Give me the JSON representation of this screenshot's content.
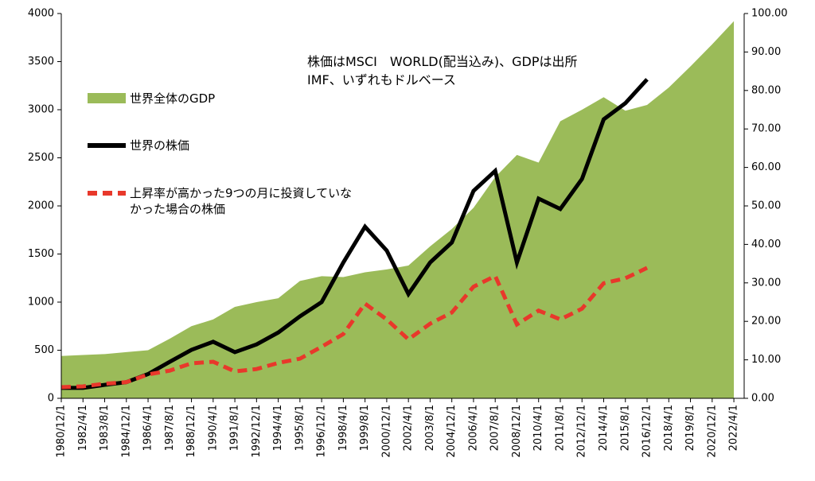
{
  "chart_data": {
    "type": "line",
    "annotation": "株価はMSCI　WORLD(配当込み)、GDPは出所IMF、いずれもドルベース",
    "categories": [
      "1980/12/1",
      "1982/4/1",
      "1983/8/1",
      "1984/12/1",
      "1986/4/1",
      "1987/8/1",
      "1988/12/1",
      "1990/4/1",
      "1991/8/1",
      "1992/12/1",
      "1994/4/1",
      "1995/8/1",
      "1996/12/1",
      "1998/4/1",
      "1999/8/1",
      "2000/12/1",
      "2002/4/1",
      "2003/8/1",
      "2004/12/1",
      "2006/4/1",
      "2007/8/1",
      "2008/12/1",
      "2010/4/1",
      "2011/8/1",
      "2012/12/1",
      "2014/4/1",
      "2015/8/1",
      "2016/12/1",
      "2018/4/1",
      "2019/8/1",
      "2020/12/1",
      "2022/4/1"
    ],
    "series": [
      {
        "name": "世界全体のGDP",
        "type": "area",
        "color": "#9bbb59",
        "axis": "y",
        "values": [
          440,
          450,
          460,
          480,
          500,
          620,
          750,
          820,
          950,
          1000,
          1040,
          1220,
          1270,
          1260,
          1310,
          1340,
          1380,
          1580,
          1760,
          1980,
          2300,
          2530,
          2450,
          2880,
          3000,
          3130,
          2990,
          3050,
          3230,
          3450,
          3680,
          3920
        ]
      },
      {
        "name": "世界の株価",
        "type": "line",
        "color": "#000000",
        "dash": false,
        "axis": "y2",
        "values": [
          2.7,
          2.7,
          3.5,
          4.2,
          6.3,
          9.5,
          12.6,
          14.7,
          12.0,
          14.0,
          17.1,
          21.3,
          25.0,
          35.3,
          44.6,
          38.4,
          27.1,
          35.3,
          40.5,
          53.9,
          59.1,
          35.3,
          51.9,
          49.2,
          57.0,
          72.5,
          76.7,
          82.9,
          null,
          null,
          null,
          null
        ]
      },
      {
        "name": "上昇率が高かった9つの月に投資していなかった場合の株価",
        "type": "line",
        "color": "#e8382b",
        "dash": true,
        "axis": "y2",
        "values": [
          2.9,
          3.1,
          3.8,
          4.2,
          6.2,
          7.2,
          9.1,
          9.5,
          7.0,
          7.6,
          9.2,
          10.3,
          13.4,
          16.7,
          24.6,
          20.5,
          15.3,
          19.4,
          22.3,
          29.0,
          31.8,
          19.2,
          22.8,
          20.5,
          23.3,
          29.9,
          31.2,
          33.9,
          null,
          null,
          null,
          null
        ]
      }
    ],
    "ylim": [
      0,
      4000
    ],
    "yticks": [
      0,
      500,
      1000,
      1500,
      2000,
      2500,
      3000,
      3500,
      4000
    ],
    "y2lim": [
      0,
      100
    ],
    "y2ticks": [
      {
        "value": 0,
        "label": "0.00"
      },
      {
        "value": 10,
        "label": "10.00"
      },
      {
        "value": 20,
        "label": "20.00"
      },
      {
        "value": 30,
        "label": "30.00"
      },
      {
        "value": 40,
        "label": "40.00"
      },
      {
        "value": 50,
        "label": "50.00"
      },
      {
        "value": 60,
        "label": "60.00"
      },
      {
        "value": 70,
        "label": "70.00"
      },
      {
        "value": 80,
        "label": "80.00"
      },
      {
        "value": 90,
        "label": "90.00"
      },
      {
        "value": 100,
        "label": "100.00"
      }
    ],
    "grid": false
  }
}
